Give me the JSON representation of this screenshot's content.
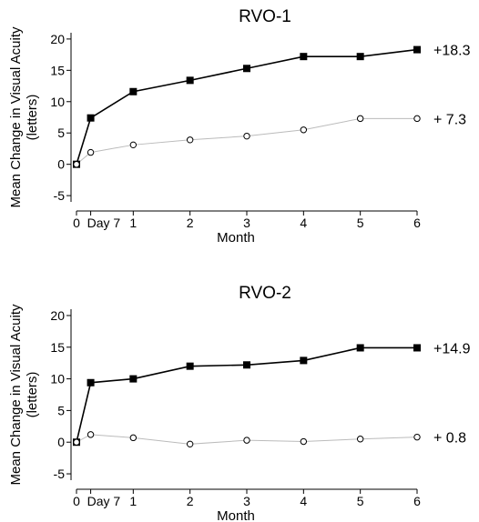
{
  "chart_data": [
    {
      "type": "line",
      "title": "RVO-1",
      "xlabel": "Month",
      "ylabel_lines": [
        "Mean Change in Visual Acuity",
        "(letters)"
      ],
      "x": [
        0,
        0.25,
        1,
        2,
        3,
        4,
        5,
        6
      ],
      "x_tick_labels": [
        {
          "value": 0,
          "label": "0"
        },
        {
          "value": 0.25,
          "label": "Day 7"
        },
        {
          "value": 1,
          "label": "1"
        },
        {
          "value": 2,
          "label": "2"
        },
        {
          "value": 3,
          "label": "3"
        },
        {
          "value": 4,
          "label": "4"
        },
        {
          "value": 5,
          "label": "5"
        },
        {
          "value": 6,
          "label": "6"
        }
      ],
      "ylim": [
        -6,
        21
      ],
      "y_ticks": [
        -5,
        0,
        5,
        10,
        15,
        20
      ],
      "y_tick_labels": [
        "-5",
        "0",
        "5",
        "10",
        "15",
        "20"
      ],
      "series": [
        {
          "marker": "filled-square",
          "color": "#000000",
          "values": [
            0,
            7.4,
            11.6,
            13.4,
            15.3,
            17.2,
            17.2,
            18.3
          ],
          "end_label": "+18.3"
        },
        {
          "marker": "open-circle",
          "color": "#bbbbbb",
          "values": [
            0,
            1.9,
            3.1,
            3.9,
            4.5,
            5.5,
            7.3,
            7.3
          ],
          "end_label": "+ 7.3"
        }
      ]
    },
    {
      "type": "line",
      "title": "RVO-2",
      "xlabel": "Month",
      "ylabel_lines": [
        "Mean Change in Visual Acuity",
        "(letters)"
      ],
      "x": [
        0,
        0.25,
        1,
        2,
        3,
        4,
        5,
        6
      ],
      "x_tick_labels": [
        {
          "value": 0,
          "label": "0"
        },
        {
          "value": 0.25,
          "label": "Day 7"
        },
        {
          "value": 1,
          "label": "1"
        },
        {
          "value": 2,
          "label": "2"
        },
        {
          "value": 3,
          "label": "3"
        },
        {
          "value": 4,
          "label": "4"
        },
        {
          "value": 5,
          "label": "5"
        },
        {
          "value": 6,
          "label": "6"
        }
      ],
      "ylim": [
        -6,
        21
      ],
      "y_ticks": [
        -5,
        0,
        5,
        10,
        15,
        20
      ],
      "y_tick_labels": [
        "-5",
        "0",
        "5",
        "10",
        "15",
        "20"
      ],
      "series": [
        {
          "marker": "filled-square",
          "color": "#000000",
          "values": [
            0,
            9.4,
            10,
            12,
            12.2,
            12.9,
            14.9,
            14.9
          ],
          "end_label": "+14.9"
        },
        {
          "marker": "open-circle",
          "color": "#bbbbbb",
          "values": [
            0,
            1.2,
            0.7,
            -0.3,
            0.3,
            0.1,
            0.5,
            0.8
          ],
          "end_label": "+ 0.8"
        }
      ]
    }
  ]
}
